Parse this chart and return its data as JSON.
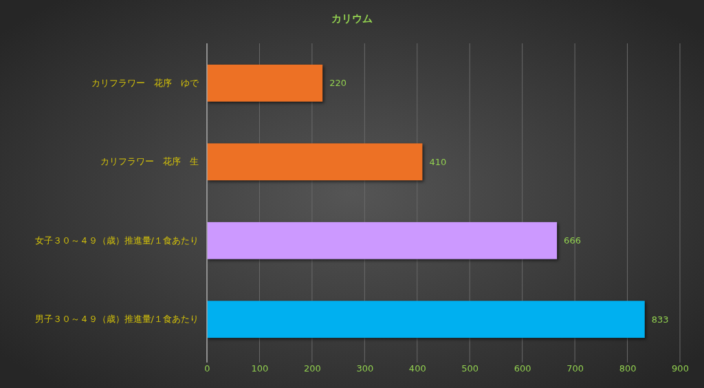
{
  "chart_data": {
    "type": "bar",
    "orientation": "horizontal",
    "title": "カリウム",
    "categories": [
      "カリフラワー　花序　ゆで",
      "カリフラワー　花序　生",
      "女子３０～４９（歳）推進量/１食あたり",
      "男子３０～４９（歳）推進量/１食あたり"
    ],
    "values": [
      220,
      410,
      666,
      833
    ],
    "colors": [
      "#ed7125",
      "#ed7125",
      "#cc99ff",
      "#00b0f0"
    ],
    "xlim": [
      0,
      900
    ],
    "xticks": [
      0,
      100,
      200,
      300,
      400,
      500,
      600,
      700,
      800,
      900
    ],
    "grid": "x",
    "data_labels": true
  }
}
